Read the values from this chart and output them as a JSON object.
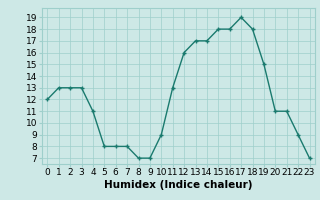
{
  "x": [
    0,
    1,
    2,
    3,
    4,
    5,
    6,
    7,
    8,
    9,
    10,
    11,
    12,
    13,
    14,
    15,
    16,
    17,
    18,
    19,
    20,
    21,
    22,
    23
  ],
  "y": [
    12,
    13,
    13,
    13,
    11,
    8,
    8,
    8,
    7,
    7,
    9,
    13,
    16,
    17,
    17,
    18,
    18,
    19,
    18,
    15,
    11,
    11,
    9,
    7
  ],
  "line_color": "#1a7a6e",
  "marker": "+",
  "bg_color": "#cde8e6",
  "grid_color": "#9ecfcb",
  "xlabel": "Humidex (Indice chaleur)",
  "ylabel_ticks": [
    7,
    8,
    9,
    10,
    11,
    12,
    13,
    14,
    15,
    16,
    17,
    18,
    19
  ],
  "ylim": [
    6.5,
    19.8
  ],
  "xlim": [
    -0.5,
    23.5
  ],
  "tick_fontsize": 6.5,
  "xlabel_fontsize": 7.5
}
